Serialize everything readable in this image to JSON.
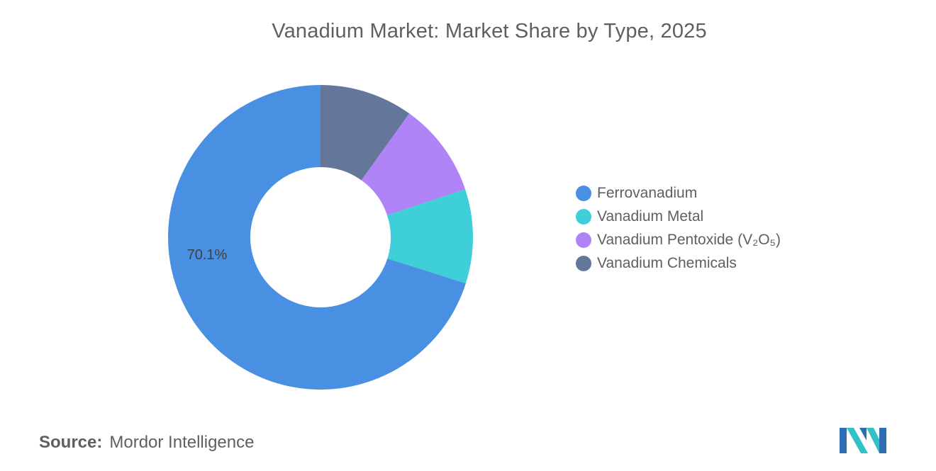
{
  "title": "Vanadium Market: Market Share by Type, 2025",
  "chart_data": {
    "type": "pie",
    "variant": "donut",
    "title": "Vanadium Market: Market Share by Type, 2025",
    "categories": [
      "Ferrovanadium",
      "Vanadium Metal",
      "Vanadium Pentoxide (V₂O₅)",
      "Vanadium Chemicals"
    ],
    "values": [
      70.1,
      10.0,
      10.0,
      9.9
    ],
    "data_labels": [
      {
        "category": "Ferrovanadium",
        "text": "70.1%"
      }
    ],
    "colors": [
      "#4a90e2",
      "#3ecfd9",
      "#b084f7",
      "#64779a"
    ],
    "legend_position": "right"
  },
  "source": {
    "label": "Source:",
    "text": "Mordor Intelligence"
  },
  "logo": {
    "icon": "mordor-intelligence-logo-icon",
    "colors": [
      "#2e6db4",
      "#33c0c6"
    ]
  }
}
